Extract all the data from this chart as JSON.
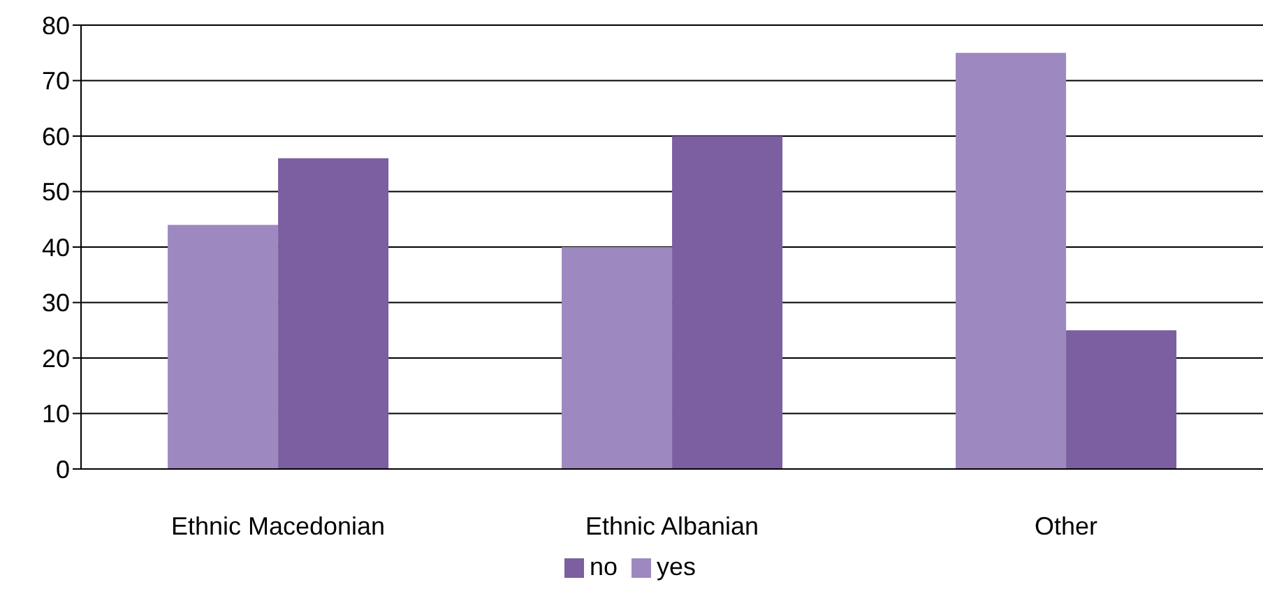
{
  "chart_data": {
    "type": "bar",
    "categories": [
      "Ethnic Macedonian",
      "Ethnic Albanian",
      "Other"
    ],
    "series": [
      {
        "name": "yes",
        "color": "#9e88c0",
        "values": [
          44,
          40,
          75
        ]
      },
      {
        "name": "no",
        "color": "#7b5fa0",
        "values": [
          56,
          60,
          25
        ]
      }
    ],
    "ylim": [
      0,
      80
    ],
    "yticks": [
      0,
      10,
      20,
      30,
      40,
      50,
      60,
      70,
      80
    ],
    "grid": "y",
    "legend": "bottom"
  }
}
